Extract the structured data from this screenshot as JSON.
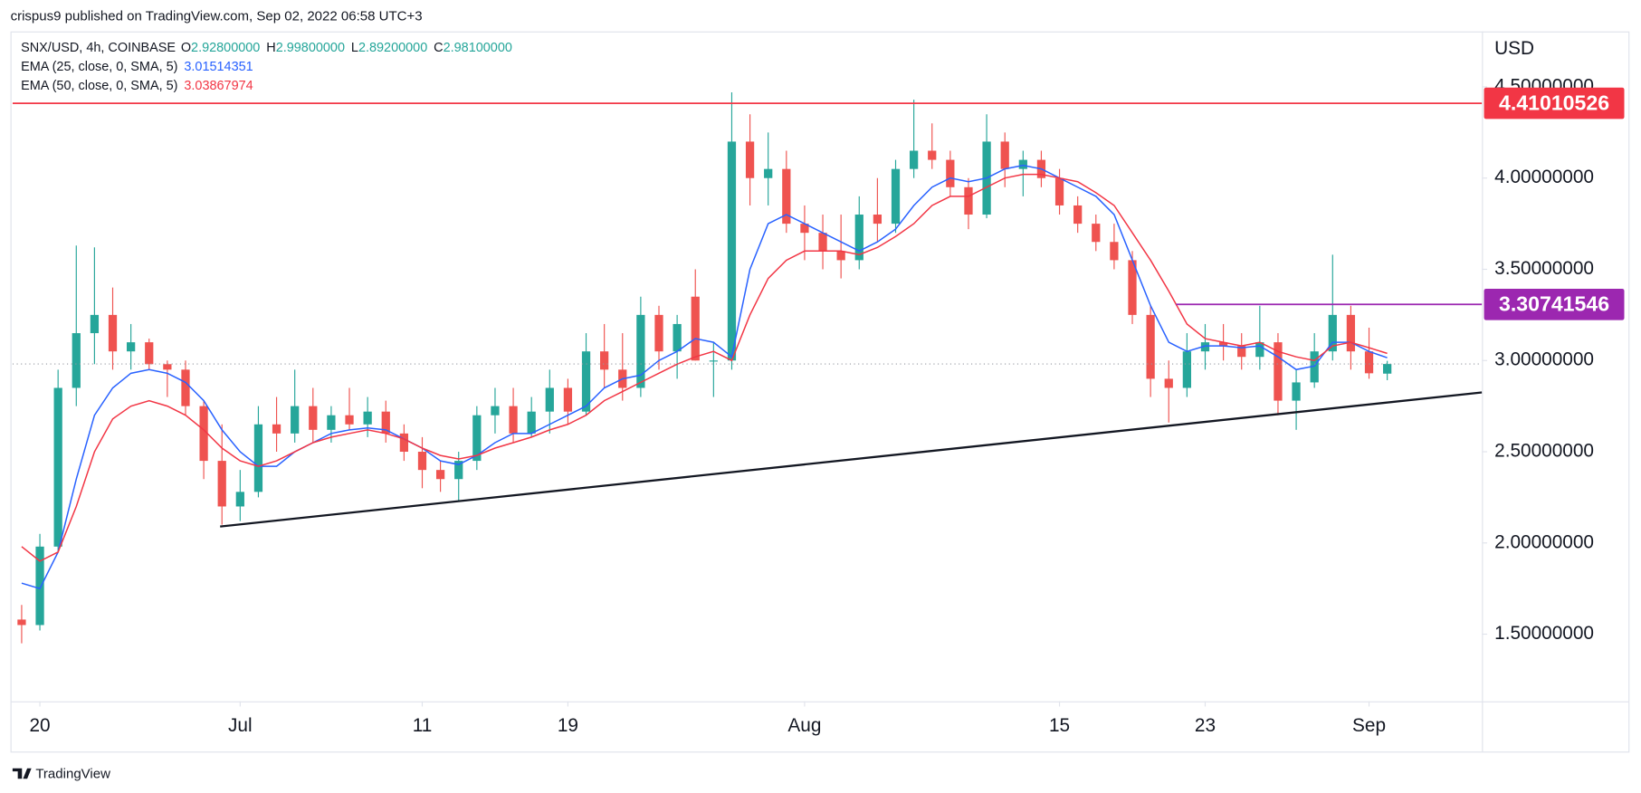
{
  "header": {
    "publisher": "crispus9 published on TradingView.com, Sep 02, 2022 06:58 UTC+3",
    "footer": "TradingView"
  },
  "chart_data": {
    "type": "candlestick",
    "symbol": "SNX/USD, 4h, COINBASE",
    "ohlc_legend": [
      {
        "label": "O",
        "value": "2.92800000"
      },
      {
        "label": "H",
        "value": "2.99800000"
      },
      {
        "label": "L",
        "value": "2.89200000"
      },
      {
        "label": "C",
        "value": "2.98100000"
      }
    ],
    "y_axis_label": "USD",
    "up_color": "#26a69a",
    "down_color": "#ef5350",
    "open": [
      1.58,
      1.55,
      1.98,
      2.85,
      3.15,
      3.25,
      3.05,
      3.1,
      2.98,
      2.95,
      2.75,
      2.45,
      2.2,
      2.28,
      2.65,
      2.6,
      2.75,
      2.62,
      2.7,
      2.65,
      2.72,
      2.6,
      2.5,
      2.4,
      2.35,
      2.45,
      2.7,
      2.75,
      2.6,
      2.72,
      2.85,
      2.72,
      3.05,
      2.95,
      2.85,
      3.25,
      3.05,
      3.35,
      3.0,
      3.0,
      4.2,
      4.0,
      4.05,
      3.75,
      3.7,
      3.6,
      3.55,
      3.8,
      3.75,
      4.05,
      4.15,
      4.1,
      3.95,
      3.8,
      4.2,
      4.05,
      4.1,
      4.0,
      3.85,
      3.75,
      3.65,
      3.55,
      3.25,
      2.9,
      2.85,
      3.05,
      3.1,
      3.08,
      3.02,
      3.1,
      2.78,
      2.88,
      3.05,
      3.25,
      3.05,
      2.928
    ],
    "high": [
      1.66,
      2.05,
      2.95,
      3.63,
      3.62,
      3.4,
      3.2,
      3.12,
      3.0,
      3.0,
      2.78,
      2.65,
      2.4,
      2.75,
      2.8,
      2.95,
      2.85,
      2.75,
      2.85,
      2.8,
      2.78,
      2.65,
      2.58,
      2.45,
      2.5,
      2.75,
      2.85,
      2.85,
      2.8,
      2.95,
      2.9,
      3.15,
      3.2,
      3.15,
      3.35,
      3.3,
      3.25,
      3.5,
      3.1,
      4.47,
      4.35,
      4.25,
      4.15,
      3.85,
      3.8,
      3.8,
      3.9,
      4.0,
      4.1,
      4.43,
      4.3,
      4.15,
      4.0,
      4.35,
      4.25,
      4.15,
      4.15,
      4.05,
      3.9,
      3.8,
      3.75,
      3.6,
      3.3,
      3.0,
      3.15,
      3.2,
      3.2,
      3.15,
      3.3,
      3.15,
      2.95,
      3.15,
      3.58,
      3.3,
      3.18,
      2.998
    ],
    "low": [
      1.45,
      1.52,
      1.95,
      2.75,
      2.98,
      2.95,
      2.95,
      2.95,
      2.8,
      2.7,
      2.35,
      2.1,
      2.12,
      2.25,
      2.5,
      2.55,
      2.55,
      2.55,
      2.62,
      2.58,
      2.55,
      2.45,
      2.3,
      2.28,
      2.23,
      2.4,
      2.6,
      2.55,
      2.58,
      2.6,
      2.65,
      2.7,
      2.85,
      2.78,
      2.8,
      2.95,
      2.9,
      3.0,
      2.8,
      2.95,
      3.85,
      3.85,
      3.7,
      3.55,
      3.5,
      3.45,
      3.5,
      3.65,
      3.7,
      4.0,
      4.05,
      3.9,
      3.72,
      3.78,
      3.95,
      3.9,
      3.95,
      3.8,
      3.7,
      3.6,
      3.5,
      3.2,
      2.8,
      2.66,
      2.8,
      2.95,
      3.0,
      2.95,
      2.95,
      2.7,
      2.62,
      2.85,
      3.0,
      2.95,
      2.9,
      2.892
    ],
    "close": [
      1.55,
      1.98,
      2.85,
      3.15,
      3.25,
      3.05,
      3.1,
      2.98,
      2.95,
      2.75,
      2.45,
      2.2,
      2.28,
      2.65,
      2.6,
      2.75,
      2.62,
      2.7,
      2.65,
      2.72,
      2.6,
      2.5,
      2.4,
      2.35,
      2.45,
      2.7,
      2.75,
      2.6,
      2.72,
      2.85,
      2.72,
      3.05,
      2.95,
      2.85,
      3.25,
      3.05,
      3.2,
      3.0,
      3.0,
      4.2,
      4.0,
      4.05,
      3.75,
      3.7,
      3.6,
      3.55,
      3.8,
      3.75,
      4.05,
      4.15,
      4.1,
      3.95,
      3.8,
      4.2,
      4.05,
      4.1,
      4.0,
      3.85,
      3.75,
      3.65,
      3.55,
      3.25,
      2.9,
      2.85,
      3.05,
      3.1,
      3.08,
      3.02,
      3.1,
      2.78,
      2.88,
      3.05,
      3.25,
      3.05,
      2.93,
      2.981
    ],
    "indicators": [
      {
        "name": "EMA (25, close, 0, SMA, 5)",
        "last_label": "3.01514351",
        "color": "#2962ff",
        "values": [
          1.78,
          1.75,
          1.95,
          2.35,
          2.7,
          2.85,
          2.93,
          2.95,
          2.93,
          2.88,
          2.78,
          2.62,
          2.5,
          2.42,
          2.42,
          2.5,
          2.55,
          2.6,
          2.62,
          2.63,
          2.62,
          2.57,
          2.52,
          2.45,
          2.43,
          2.48,
          2.55,
          2.6,
          2.6,
          2.65,
          2.7,
          2.75,
          2.85,
          2.9,
          2.92,
          3.0,
          3.05,
          3.12,
          3.1,
          3.02,
          3.5,
          3.75,
          3.8,
          3.75,
          3.7,
          3.65,
          3.6,
          3.65,
          3.72,
          3.85,
          3.95,
          4.0,
          3.98,
          4.0,
          4.05,
          4.07,
          4.05,
          4.0,
          3.95,
          3.9,
          3.8,
          3.55,
          3.3,
          3.1,
          3.05,
          3.08,
          3.08,
          3.07,
          3.08,
          3.02,
          2.95,
          2.97,
          3.1,
          3.1,
          3.05,
          3.015
        ]
      },
      {
        "name": "EMA (50, close, 0, SMA, 5)",
        "last_label": "3.03867974",
        "color": "#f23645",
        "values": [
          1.98,
          1.9,
          1.95,
          2.2,
          2.5,
          2.68,
          2.75,
          2.78,
          2.75,
          2.7,
          2.62,
          2.52,
          2.45,
          2.42,
          2.45,
          2.5,
          2.55,
          2.58,
          2.6,
          2.62,
          2.6,
          2.57,
          2.52,
          2.48,
          2.46,
          2.48,
          2.52,
          2.55,
          2.58,
          2.62,
          2.65,
          2.7,
          2.78,
          2.83,
          2.88,
          2.93,
          2.98,
          3.02,
          3.05,
          3.0,
          3.25,
          3.45,
          3.55,
          3.6,
          3.6,
          3.6,
          3.58,
          3.62,
          3.68,
          3.75,
          3.85,
          3.9,
          3.9,
          3.95,
          4.0,
          4.02,
          4.02,
          4.0,
          3.98,
          3.92,
          3.85,
          3.7,
          3.55,
          3.38,
          3.2,
          3.12,
          3.1,
          3.08,
          3.1,
          3.05,
          3.02,
          3.0,
          3.08,
          3.1,
          3.07,
          3.039
        ]
      }
    ],
    "levels": [
      {
        "value": 4.41010526,
        "label": "4.41010526",
        "color": "#f23645",
        "start": -0.5
      },
      {
        "value": 3.30741546,
        "label": "3.30741546",
        "color": "#9c27b0",
        "start": 63.4
      }
    ],
    "trendline": {
      "points": [
        [
          10.9,
          2.09
        ],
        [
          80.2,
          2.825
        ]
      ],
      "color": "#131722"
    },
    "xlim": [
      -0.5,
      80.2
    ],
    "xticks": [
      {
        "value": 1,
        "label": "20"
      },
      {
        "value": 12,
        "label": "Jul"
      },
      {
        "value": 22,
        "label": "11"
      },
      {
        "value": 30,
        "label": "19"
      },
      {
        "value": 43,
        "label": "Aug"
      },
      {
        "value": 57,
        "label": "15"
      },
      {
        "value": 65,
        "label": "23"
      },
      {
        "value": 74,
        "label": "Sep"
      }
    ],
    "ylim": [
      1.132,
      4.804
    ],
    "yticks": [
      {
        "value": 1.5,
        "label": "1.50000000"
      },
      {
        "value": 2.0,
        "label": "2.00000000"
      },
      {
        "value": 2.5,
        "label": "2.50000000"
      },
      {
        "value": 3.0,
        "label": "3.00000000"
      },
      {
        "value": 3.5,
        "label": "3.50000000"
      },
      {
        "value": 4.0,
        "label": "4.00000000"
      },
      {
        "value": 4.5,
        "label": "4.50000000"
      }
    ],
    "grid": false
  }
}
